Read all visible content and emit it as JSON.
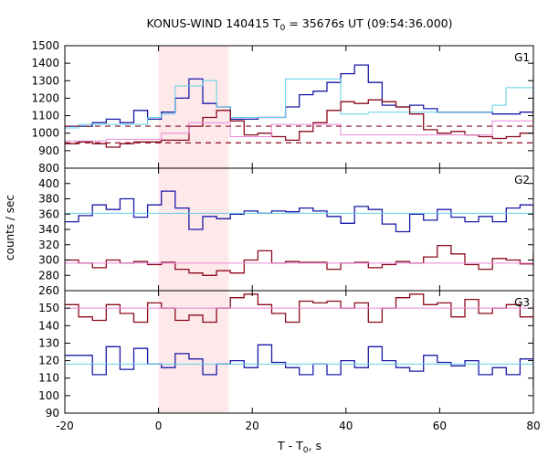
{
  "chart_data": {
    "type": "line",
    "title": "KONUS-WIND 140415 T",
    "title_sub": "0",
    "title_rest": " = 35676s UT (09:54:36.000)",
    "xlabel": "T - T",
    "xlabel_sub": "0",
    "xlabel_rest": ", s",
    "ylabel": "counts / sec",
    "xlim": [
      -20,
      80
    ],
    "x_ticks": [
      -20,
      0,
      20,
      40,
      60,
      80
    ],
    "shaded_interval": [
      0,
      15
    ],
    "colors": {
      "signal": "#1a1aa8",
      "signal_model": "#5fd0e6",
      "background": "#8b0a1c",
      "background_model": "#ea88d8",
      "shade": "#fde8ea"
    },
    "panels": [
      {
        "label": "G1",
        "ylim": [
          800,
          1500
        ],
        "y_ticks": [
          800,
          900,
          1000,
          1100,
          1200,
          1300,
          1400,
          1500
        ],
        "series": [
          {
            "role": "signal",
            "step": 2.944,
            "x0": -20,
            "values": [
              1040,
              1040,
              1060,
              1080,
              1060,
              1130,
              1080,
              1120,
              1200,
              1310,
              1170,
              1150,
              1080,
              1080,
              1090,
              1090,
              1150,
              1220,
              1240,
              1290,
              1340,
              1390,
              1290,
              1160,
              1150,
              1160,
              1140,
              1120,
              1120,
              1120,
              1120,
              1110,
              1110,
              1120,
              1130,
              1170,
              1220,
              1260,
              1310,
              1300
            ]
          },
          {
            "role": "signal_model",
            "step": 2.944,
            "points": [
              [
                -20,
                1030
              ],
              [
                -17.06,
                1050
              ],
              [
                -11.17,
                1050
              ],
              [
                -2.34,
                1090
              ],
              [
                0.6,
                1110
              ],
              [
                3.54,
                1270
              ],
              [
                9.42,
                1300
              ],
              [
                12.37,
                1150
              ],
              [
                15.31,
                1090
              ],
              [
                18.25,
                1090
              ],
              [
                27.08,
                1310
              ],
              [
                38.86,
                1110
              ],
              [
                44.75,
                1120
              ],
              [
                71.24,
                1160
              ],
              [
                74.18,
                1260
              ],
              [
                80,
                1260
              ]
            ]
          },
          {
            "role": "background",
            "step": 2.944,
            "x0": -20,
            "values": [
              940,
              950,
              940,
              920,
              940,
              950,
              950,
              960,
              960,
              1040,
              1090,
              1130,
              1070,
              990,
              1000,
              980,
              960,
              1010,
              1060,
              1130,
              1180,
              1170,
              1190,
              1180,
              1150,
              1110,
              1020,
              1000,
              1010,
              990,
              980,
              970,
              980,
              1000,
              1030,
              1040,
              1070,
              1120,
              1150,
              1180
            ]
          },
          {
            "role": "background_model",
            "step": 2.944,
            "points": [
              [
                -20,
                955
              ],
              [
                -11.17,
                965
              ],
              [
                0.6,
                1000
              ],
              [
                6.48,
                1060
              ],
              [
                15.31,
                980
              ],
              [
                24.14,
                1050
              ],
              [
                38.86,
                990
              ],
              [
                71.24,
                1070
              ],
              [
                80,
                1100
              ]
            ]
          },
          {
            "role": "background_level",
            "dashed": true,
            "value": 945
          },
          {
            "role": "signal_level",
            "dashed": true,
            "value": 1040
          }
        ]
      },
      {
        "label": "G2",
        "ylim": [
          260,
          420
        ],
        "y_ticks": [
          260,
          280,
          300,
          320,
          340,
          360,
          380,
          400
        ],
        "series": [
          {
            "role": "signal",
            "step": 2.944,
            "x0": -20,
            "values": [
              350,
              358,
              372,
              366,
              380,
              356,
              372,
              390,
              368,
              340,
              357,
              354,
              360,
              364,
              361,
              364,
              363,
              368,
              364,
              357,
              348,
              370,
              366,
              347,
              337,
              360,
              352,
              366,
              356,
              350,
              357,
              350,
              368,
              372,
              362,
              354,
              352,
              373,
              365,
              353
            ]
          },
          {
            "role": "signal_model",
            "step": 2.944,
            "constant": 361
          },
          {
            "role": "background",
            "step": 2.944,
            "x0": -20,
            "values": [
              300,
              296,
              290,
              300,
              296,
              298,
              294,
              297,
              288,
              283,
              280,
              286,
              283,
              300,
              312,
              296,
              298,
              297,
              297,
              288,
              296,
              297,
              290,
              294,
              298,
              296,
              304,
              319,
              308,
              294,
              288,
              302,
              300,
              295,
              302,
              310,
              292,
              295,
              301,
              299
            ]
          },
          {
            "role": "background_model",
            "step": 2.944,
            "constant": 296
          }
        ]
      },
      {
        "label": "G3",
        "ylim": [
          90,
          160
        ],
        "y_ticks": [
          90,
          100,
          110,
          120,
          130,
          140,
          150,
          160
        ],
        "series": [
          {
            "role": "signal",
            "step": 2.944,
            "x0": -20,
            "values": [
              123,
              123,
              112,
              128,
              115,
              127,
              118,
              116,
              124,
              121,
              112,
              118,
              120,
              116,
              129,
              119,
              116,
              112,
              118,
              112,
              120,
              116,
              128,
              120,
              116,
              114,
              123,
              119,
              117,
              120,
              112,
              116,
              112,
              121,
              133,
              116,
              119,
              124,
              120,
              105
            ]
          },
          {
            "role": "signal_model",
            "step": 2.944,
            "constant": 118
          },
          {
            "role": "background",
            "step": 2.944,
            "x0": -20,
            "values": [
              152,
              145,
              143,
              152,
              147,
              142,
              153,
              150,
              143,
              146,
              142,
              150,
              156,
              158,
              152,
              147,
              142,
              154,
              153,
              154,
              150,
              153,
              142,
              150,
              156,
              158,
              152,
              153,
              145,
              155,
              147,
              150,
              152,
              145,
              151,
              154,
              155,
              152,
              140,
              154
            ]
          },
          {
            "role": "background_model",
            "step": 2.944,
            "constant": 150
          }
        ]
      }
    ]
  }
}
